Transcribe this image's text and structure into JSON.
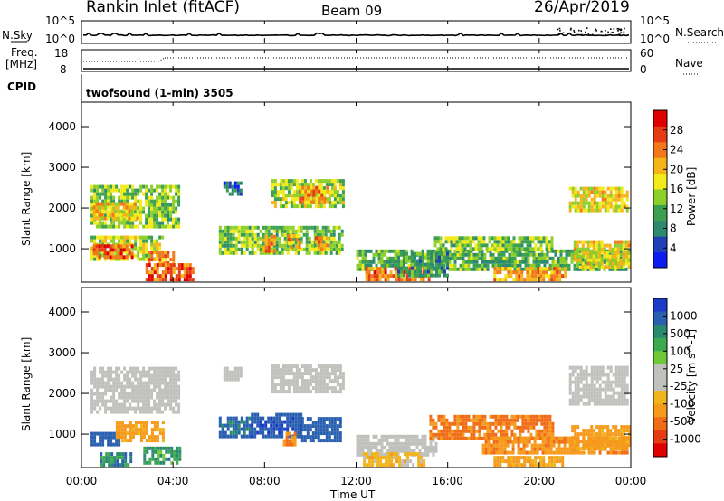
{
  "header": {
    "station": "Rankin Inlet (fitACF)",
    "beam": "Beam 09",
    "date": "26/Apr/2019"
  },
  "top_panels": {
    "nsky_label": "N.Sky",
    "nsky_ticks": [
      "10^5",
      "10^0"
    ],
    "nsearch_label": "N.Search",
    "nsearch_ticks": [
      "10^5",
      "10^0"
    ],
    "freq_label": "Freq.",
    "freq_unit": "[MHz]",
    "freq_ticks": [
      "18",
      "8"
    ],
    "nave_label": "Nave",
    "nave_ticks": [
      "60",
      "0"
    ],
    "cpid_label": "CPID",
    "cpid_text": "twofsound (1-min) 3505"
  },
  "colors": {
    "power_scale": [
      "#0a1cf0",
      "#2040b8",
      "#2e8a6e",
      "#3da050",
      "#8ccf2a",
      "#f2ea1a",
      "#f5b41a",
      "#f2781a",
      "#e63c14",
      "#e00000"
    ],
    "velocity_scale": [
      "#1c3cc8",
      "#2a60b0",
      "#2a8a6e",
      "#3ca850",
      "#6ec83a",
      "#c0c0bc",
      "#c0c0bc",
      "#f2b41c",
      "#f59a1a",
      "#f06c16",
      "#e53c14",
      "#e00000"
    ],
    "ground_scatter": "#c0c0bc"
  },
  "chart_data": [
    {
      "type": "heatmap",
      "quantity": "Power",
      "ylabel": "Slant Range [km]",
      "colorbar_label": "Power [dB]",
      "colorbar_ticks": [
        "28",
        "24",
        "20",
        "16",
        "12",
        "8",
        "4"
      ],
      "colorbar_range": [
        0,
        32
      ],
      "x_ticks": [
        "00:00",
        "04:00",
        "08:00",
        "12:00",
        "16:00",
        "20:00",
        "00:00"
      ],
      "xlim_hours": [
        0,
        24
      ],
      "y_ticks": [
        "1000",
        "2000",
        "3000",
        "4000"
      ],
      "ylim_km": [
        180,
        4600
      ],
      "regions": [
        {
          "t0": 0.4,
          "t1": 4.2,
          "r0": 1500,
          "r1": 2500,
          "dB": 14
        },
        {
          "t0": 0.5,
          "t1": 2.5,
          "r0": 1700,
          "r1": 2100,
          "dB": 20
        },
        {
          "t0": 6.2,
          "t1": 7.0,
          "r0": 2300,
          "r1": 2600,
          "dB": 6
        },
        {
          "t0": 8.3,
          "t1": 11.4,
          "r0": 2000,
          "r1": 2700,
          "dB": 15
        },
        {
          "t0": 9.5,
          "t1": 10.8,
          "r0": 2100,
          "r1": 2500,
          "dB": 22
        },
        {
          "t0": 21.3,
          "t1": 23.9,
          "r0": 1900,
          "r1": 2500,
          "dB": 18
        },
        {
          "t0": 0.4,
          "t1": 3.5,
          "r0": 700,
          "r1": 1300,
          "dB": 16
        },
        {
          "t0": 0.5,
          "t1": 2.2,
          "r0": 750,
          "r1": 1050,
          "dB": 26
        },
        {
          "t0": 2.9,
          "t1": 4.0,
          "r0": 600,
          "r1": 900,
          "dB": 24
        },
        {
          "t0": 6.0,
          "t1": 11.4,
          "r0": 850,
          "r1": 1500,
          "dB": 14
        },
        {
          "t0": 7.9,
          "t1": 8.4,
          "r0": 900,
          "r1": 1300,
          "dB": 24
        },
        {
          "t0": 9.0,
          "t1": 9.5,
          "r0": 1000,
          "r1": 1300,
          "dB": 22
        },
        {
          "t0": 10.2,
          "t1": 10.7,
          "r0": 950,
          "r1": 1250,
          "dB": 22
        },
        {
          "t0": 12.0,
          "t1": 23.9,
          "r0": 450,
          "r1": 950,
          "dB": 12
        },
        {
          "t0": 15.4,
          "t1": 20.6,
          "r0": 950,
          "r1": 1300,
          "dB": 14
        },
        {
          "t0": 12.4,
          "t1": 15.2,
          "r0": 200,
          "r1": 550,
          "dB": 24
        },
        {
          "t0": 2.8,
          "t1": 4.9,
          "r0": 200,
          "r1": 600,
          "dB": 26
        },
        {
          "t0": 18.0,
          "t1": 21.2,
          "r0": 200,
          "r1": 500,
          "dB": 22
        },
        {
          "t0": 21.5,
          "t1": 23.9,
          "r0": 500,
          "r1": 1200,
          "dB": 18
        },
        {
          "t0": 13.8,
          "t1": 16.0,
          "r0": 300,
          "r1": 900,
          "dB": 10
        }
      ]
    },
    {
      "type": "heatmap",
      "quantity": "Velocity",
      "ylabel": "Slant Range [km]",
      "xlabel": "Time UT",
      "colorbar_label": "Velocity [m s^-1]",
      "colorbar_ticks": [
        "1000",
        "500",
        "100",
        "25",
        "-25",
        "-100",
        "-500",
        "-1000"
      ],
      "x_ticks": [
        "00:00",
        "04:00",
        "08:00",
        "12:00",
        "16:00",
        "20:00",
        "00:00"
      ],
      "xlim_hours": [
        0,
        24
      ],
      "y_ticks": [
        "1000",
        "2000",
        "3000",
        "4000"
      ],
      "ylim_km": [
        180,
        4600
      ],
      "regions": [
        {
          "t0": 0.4,
          "t1": 4.2,
          "r0": 1500,
          "r1": 2600,
          "v": "gs"
        },
        {
          "t0": 6.2,
          "t1": 7.0,
          "r0": 2300,
          "r1": 2600,
          "v": "gs"
        },
        {
          "t0": 8.3,
          "t1": 11.4,
          "r0": 2000,
          "r1": 2700,
          "v": "gs"
        },
        {
          "t0": 21.3,
          "t1": 23.9,
          "r0": 1700,
          "r1": 2600,
          "v": "gs"
        },
        {
          "t0": 0.4,
          "t1": 1.6,
          "r0": 700,
          "r1": 1000,
          "v": 200
        },
        {
          "t0": 1.5,
          "t1": 3.6,
          "r0": 800,
          "r1": 1300,
          "v": -150
        },
        {
          "t0": 2.7,
          "t1": 4.3,
          "r0": 250,
          "r1": 650,
          "v": 60
        },
        {
          "t0": 0.8,
          "t1": 2.2,
          "r0": 200,
          "r1": 500,
          "v": 80
        },
        {
          "t0": 6.0,
          "t1": 7.4,
          "r0": 900,
          "r1": 1400,
          "v": 120
        },
        {
          "t0": 7.4,
          "t1": 9.6,
          "r0": 900,
          "r1": 1500,
          "v": 400
        },
        {
          "t0": 8.8,
          "t1": 9.3,
          "r0": 700,
          "r1": 1000,
          "v": -200
        },
        {
          "t0": 9.6,
          "t1": 11.3,
          "r0": 800,
          "r1": 1400,
          "v": 250
        },
        {
          "t0": 12.0,
          "t1": 15.5,
          "r0": 450,
          "r1": 950,
          "v": "gs"
        },
        {
          "t0": 12.3,
          "t1": 15.0,
          "r0": 200,
          "r1": 500,
          "v": -60
        },
        {
          "t0": 15.2,
          "t1": 20.6,
          "r0": 850,
          "r1": 1400,
          "v": -300
        },
        {
          "t0": 17.5,
          "t1": 23.9,
          "r0": 500,
          "r1": 900,
          "v": -200
        },
        {
          "t0": 18.0,
          "t1": 21.0,
          "r0": 200,
          "r1": 450,
          "v": -120
        },
        {
          "t0": 21.4,
          "t1": 23.9,
          "r0": 600,
          "r1": 1200,
          "v": -150
        }
      ]
    }
  ]
}
